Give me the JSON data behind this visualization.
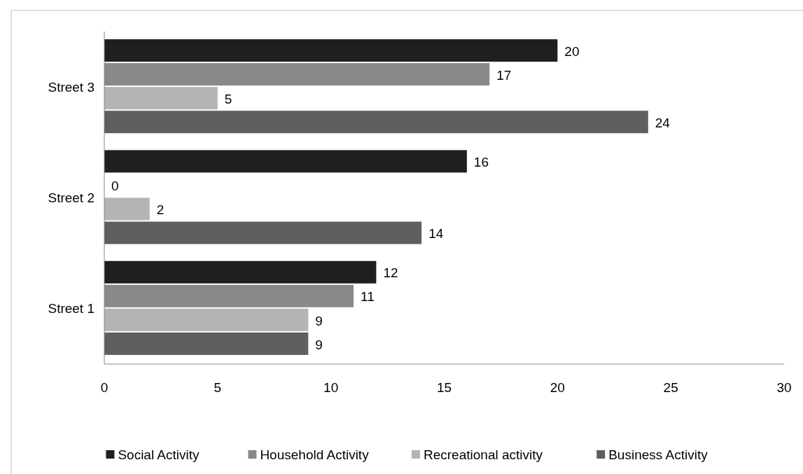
{
  "chart_data": {
    "type": "bar",
    "orientation": "horizontal",
    "categories": [
      "Street 3",
      "Street 2",
      "Street 1"
    ],
    "series": [
      {
        "name": "Social Activity",
        "color": "#1f1f1f",
        "values": [
          20,
          16,
          12
        ]
      },
      {
        "name": "Household Activity",
        "color": "#898989",
        "values": [
          17,
          0,
          11
        ]
      },
      {
        "name": "Recreational activity",
        "color": "#b4b4b4",
        "values": [
          5,
          2,
          9
        ]
      },
      {
        "name": "Business Activity",
        "color": "#5f5f5f",
        "values": [
          24,
          14,
          9
        ]
      }
    ],
    "xlim": [
      0,
      30
    ],
    "xticks": [
      0,
      5,
      10,
      15,
      20,
      25,
      30
    ],
    "data_labels": true,
    "grid": false,
    "legend": "bottom"
  }
}
